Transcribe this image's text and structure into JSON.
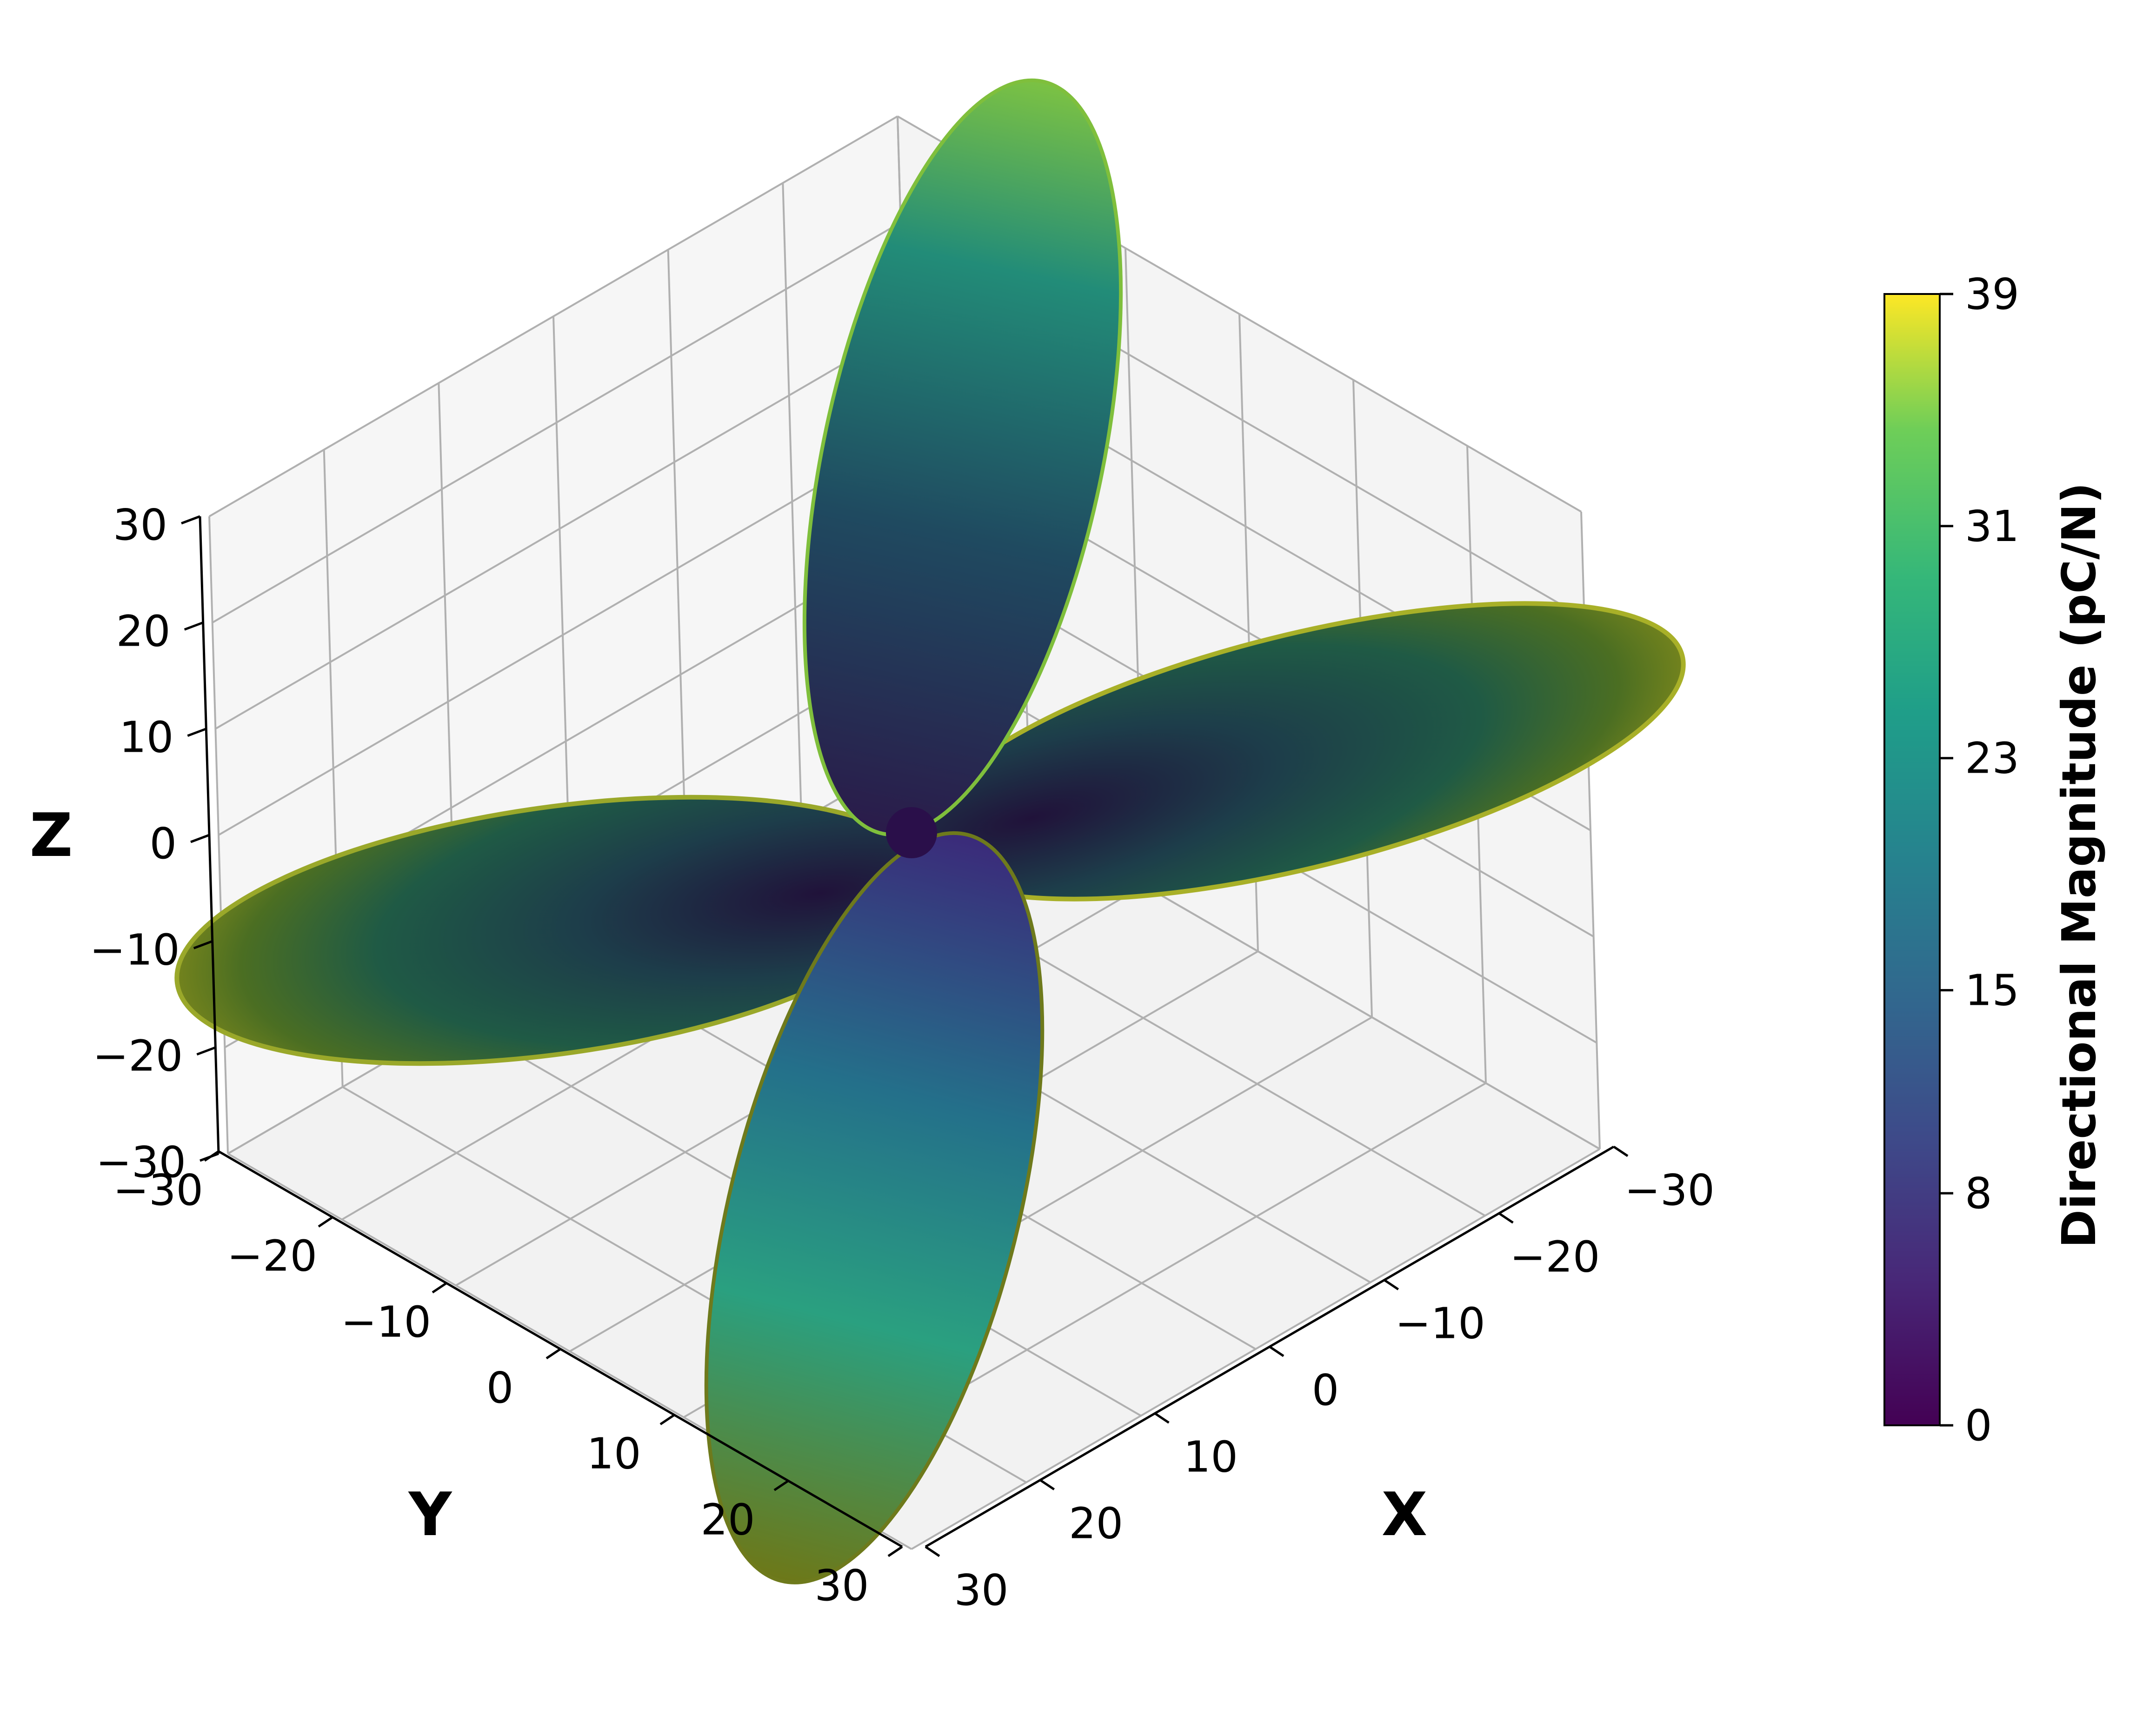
{
  "chart_data": {
    "type": "surface3d",
    "title": "",
    "axes": {
      "x": {
        "label": "X",
        "range": [
          -30,
          30
        ],
        "ticks": [
          "−30",
          "−20",
          "−10",
          "0",
          "10",
          "20",
          "30"
        ]
      },
      "y": {
        "label": "Y",
        "range": [
          -30,
          30
        ],
        "ticks": [
          "−30",
          "−20",
          "−10",
          "0",
          "10",
          "20",
          "30"
        ]
      },
      "z": {
        "label": "Z",
        "range": [
          -30,
          30
        ],
        "ticks": [
          "−30",
          "−20",
          "−10",
          "0",
          "10",
          "20",
          "30"
        ]
      }
    },
    "surface": {
      "description_of_shape": "four-lobed directional magnitude surface",
      "lobes": [
        {
          "axis": "+Y",
          "extent": 38
        },
        {
          "axis": "-Y",
          "extent": 38
        },
        {
          "axis": "+Z",
          "extent": 28
        },
        {
          "axis": "-Z",
          "extent": 28
        }
      ],
      "max_value": 39,
      "min_value": 0
    },
    "colorbar": {
      "label": "Directional Magnitude (pC/N)",
      "min": 0,
      "max": 39,
      "ticks": [
        "0",
        "8",
        "15",
        "23",
        "31",
        "39"
      ],
      "colormap": "viridis"
    },
    "grid": true
  }
}
